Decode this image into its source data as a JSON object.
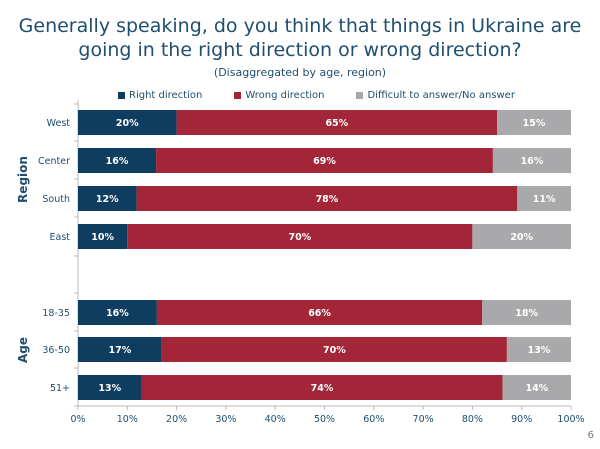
{
  "title": "Generally speaking, do you think that things in Ukraine are going in the right direction or wrong direction?",
  "subtitle": "(Disaggregated by age, region)",
  "page_number": "6",
  "colors": {
    "right": "#0f3d60",
    "wrong": "#a32638",
    "difficult": "#a9a9ab",
    "title": "#1f4e6e"
  },
  "chart_data": {
    "type": "bar",
    "orientation": "horizontal",
    "stacked": "100%",
    "legend_position": "top",
    "xlim": [
      0,
      100
    ],
    "x_ticks": [
      "0%",
      "10%",
      "20%",
      "30%",
      "40%",
      "50%",
      "60%",
      "70%",
      "80%",
      "90%",
      "100%"
    ],
    "groups": [
      {
        "label": "Region",
        "categories": [
          "West",
          "Center",
          "South",
          "East"
        ]
      },
      {
        "label": "Age",
        "categories": [
          "18-35",
          "36-50",
          "51+"
        ]
      }
    ],
    "categories": [
      "West",
      "Center",
      "South",
      "East",
      "18-35",
      "36-50",
      "51+"
    ],
    "series": [
      {
        "name": "Right direction",
        "values": [
          20,
          16,
          12,
          10,
          16,
          17,
          13
        ]
      },
      {
        "name": "Wrong direction",
        "values": [
          65,
          69,
          78,
          70,
          66,
          70,
          74
        ]
      },
      {
        "name": "Difficult to answer/No answer",
        "values": [
          15,
          16,
          11,
          20,
          18,
          13,
          14
        ]
      }
    ]
  }
}
